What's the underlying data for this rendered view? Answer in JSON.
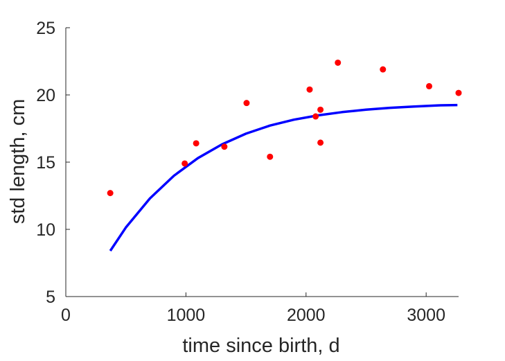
{
  "chart_data": {
    "type": "scatter",
    "xlabel": "time since birth, d",
    "ylabel": "std length, cm",
    "xlim": [
      0,
      3270
    ],
    "ylim": [
      5,
      25
    ],
    "xticks": [
      0,
      1000,
      2000,
      3000
    ],
    "yticks": [
      5,
      10,
      15,
      20,
      25
    ],
    "grid": false,
    "series": [
      {
        "kind": "points",
        "color": "#ff0000",
        "points": [
          [
            370,
            12.7
          ],
          [
            990,
            14.9
          ],
          [
            1085,
            16.4
          ],
          [
            1320,
            16.15
          ],
          [
            1505,
            19.4
          ],
          [
            1700,
            15.4
          ],
          [
            2030,
            20.4
          ],
          [
            2080,
            18.4
          ],
          [
            2120,
            16.45
          ],
          [
            2120,
            18.9
          ],
          [
            2265,
            22.4
          ],
          [
            2640,
            21.9
          ],
          [
            3025,
            20.65
          ],
          [
            3270,
            20.15
          ]
        ]
      },
      {
        "kind": "line",
        "color": "#0000ff",
        "points": [
          [
            370,
            8.4
          ],
          [
            500,
            10.14
          ],
          [
            700,
            12.3
          ],
          [
            900,
            13.99
          ],
          [
            1100,
            15.3
          ],
          [
            1300,
            16.32
          ],
          [
            1500,
            17.12
          ],
          [
            1700,
            17.72
          ],
          [
            1900,
            18.16
          ],
          [
            2100,
            18.48
          ],
          [
            2300,
            18.72
          ],
          [
            2500,
            18.9
          ],
          [
            2700,
            19.04
          ],
          [
            2900,
            19.14
          ],
          [
            3100,
            19.22
          ],
          [
            3260,
            19.25
          ]
        ]
      }
    ]
  }
}
